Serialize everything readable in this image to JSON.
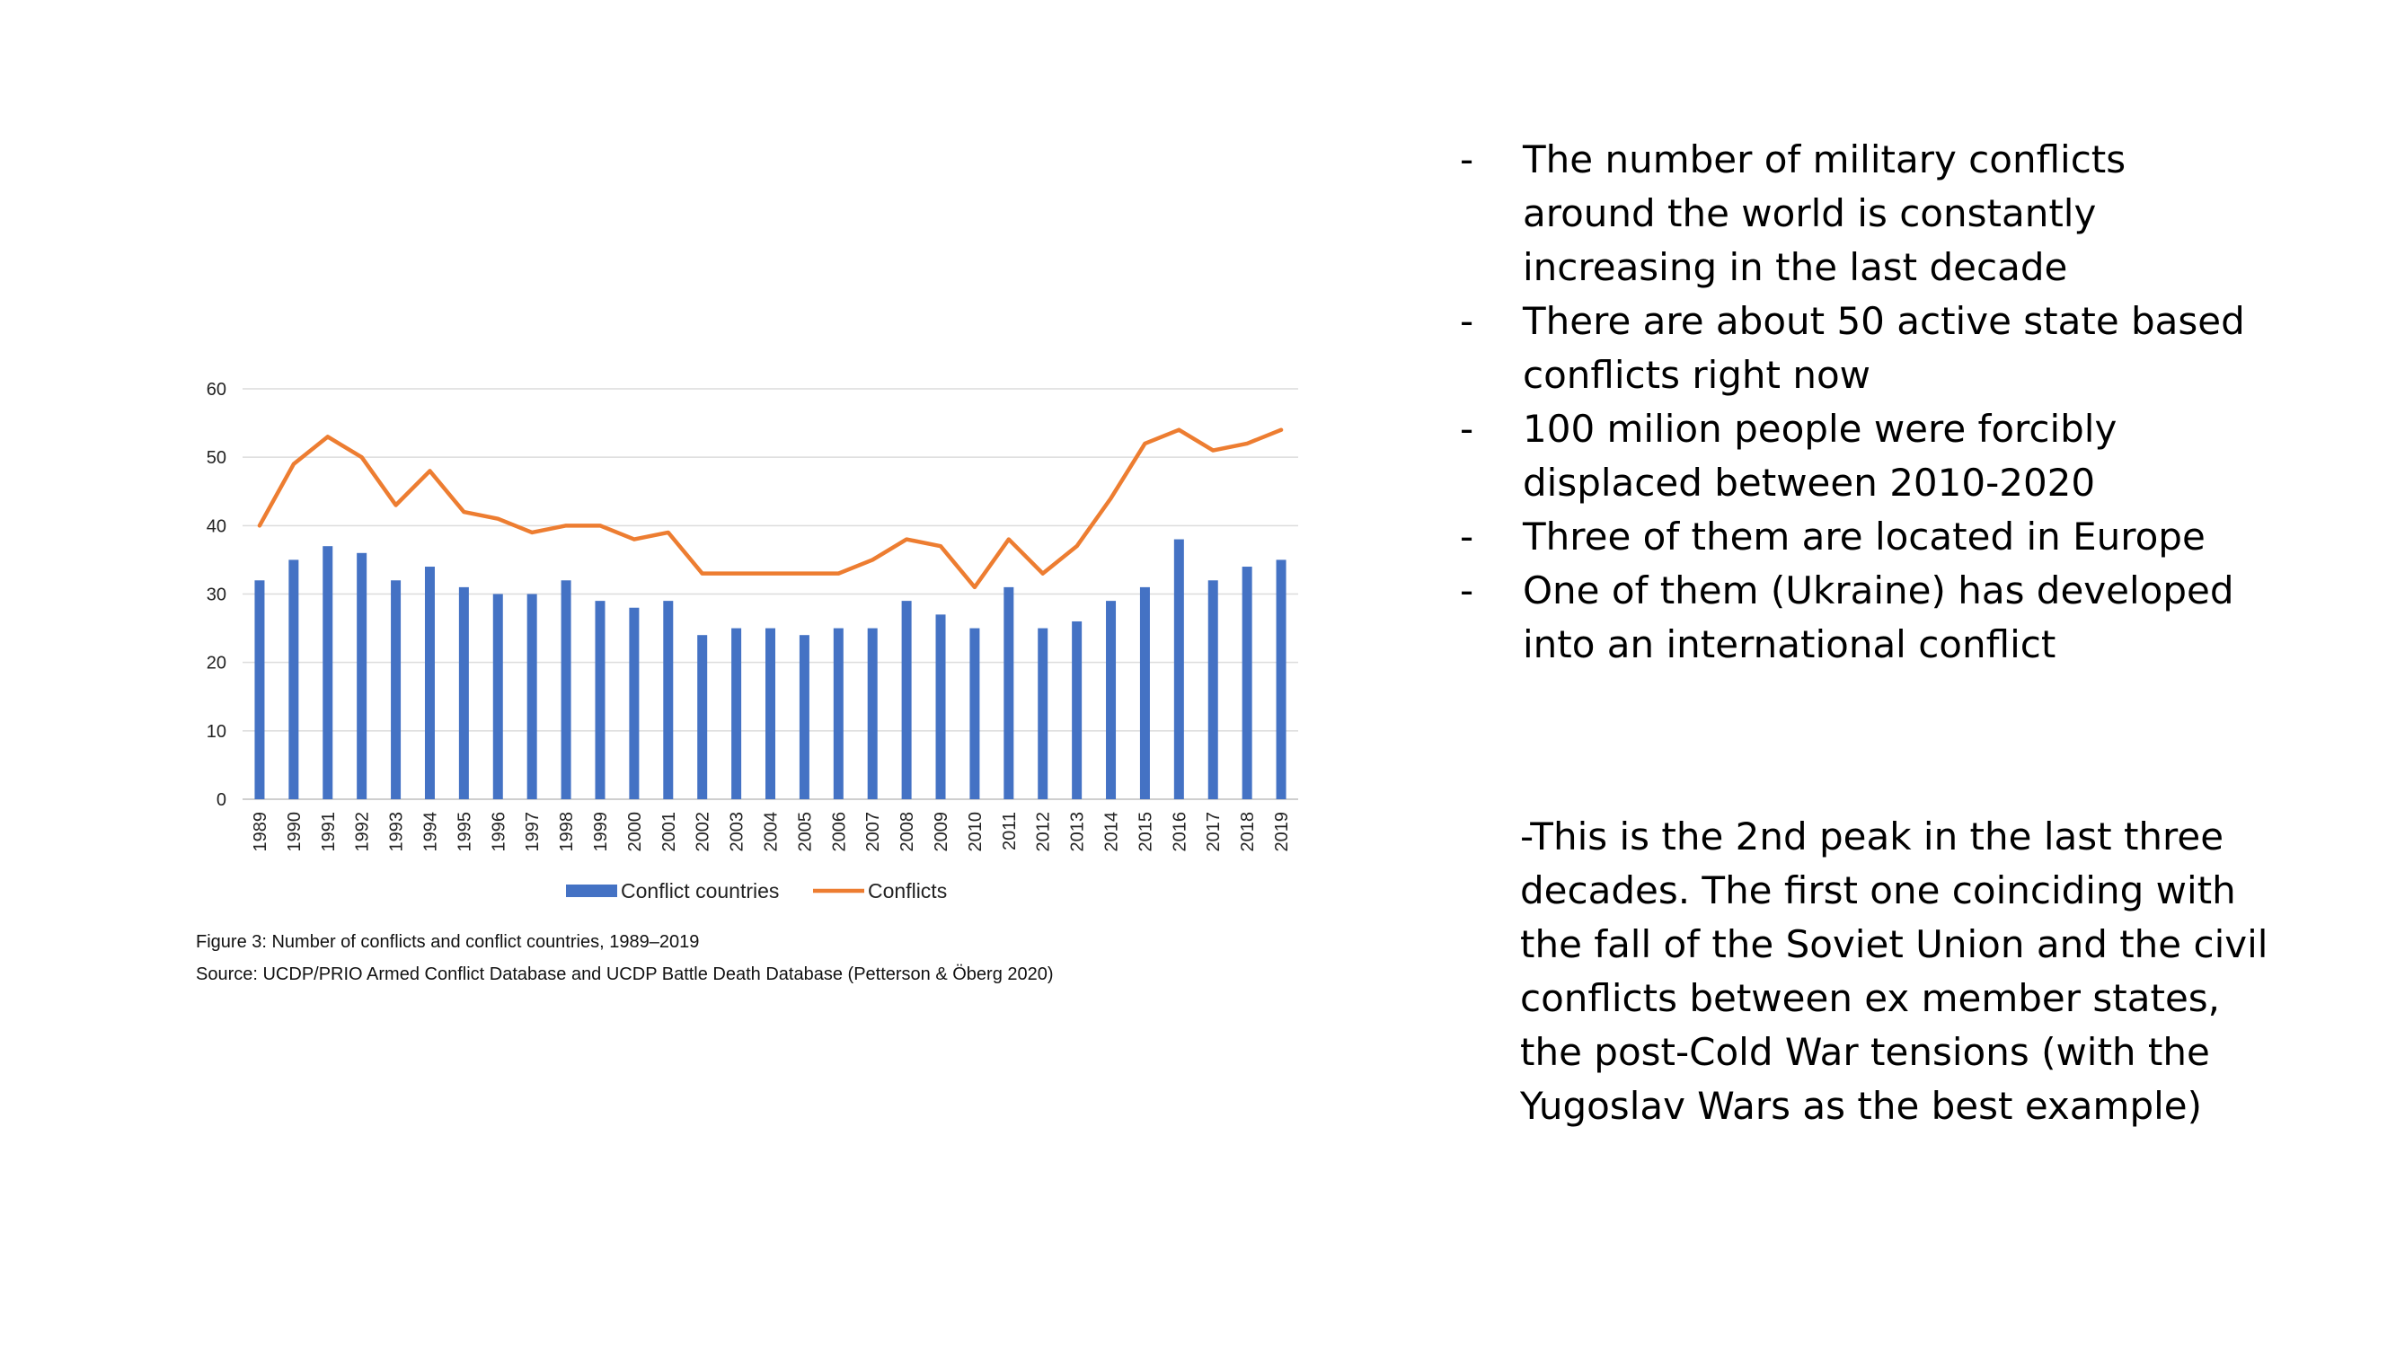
{
  "chart_data": {
    "type": "bar",
    "categories": [
      "1989",
      "1990",
      "1991",
      "1992",
      "1993",
      "1994",
      "1995",
      "1996",
      "1997",
      "1998",
      "1999",
      "2000",
      "2001",
      "2002",
      "2003",
      "2004",
      "2005",
      "2006",
      "2007",
      "2008",
      "2009",
      "2010",
      "2011",
      "2012",
      "2013",
      "2014",
      "2015",
      "2016",
      "2017",
      "2018",
      "2019"
    ],
    "series": [
      {
        "name": "Conflict countries",
        "type": "bar",
        "color": "#4472c4",
        "values": [
          32,
          35,
          37,
          36,
          32,
          34,
          31,
          30,
          30,
          32,
          29,
          28,
          29,
          24,
          25,
          25,
          24,
          25,
          25,
          29,
          27,
          25,
          31,
          25,
          26,
          29,
          31,
          38,
          32,
          34,
          35
        ]
      },
      {
        "name": "Conflicts",
        "type": "line",
        "color": "#ed7d31",
        "values": [
          40,
          49,
          53,
          50,
          43,
          48,
          42,
          41,
          39,
          40,
          40,
          38,
          39,
          33,
          33,
          33,
          33,
          33,
          35,
          38,
          37,
          31,
          38,
          33,
          37,
          44,
          52,
          54,
          51,
          52,
          54
        ]
      }
    ],
    "ylim": [
      0,
      60
    ],
    "yticks": [
      0,
      10,
      20,
      30,
      40,
      50,
      60
    ],
    "grid": true,
    "legend": "bottom"
  },
  "caption": {
    "figure": "Figure 3: Number of conflicts and conflict countries, 1989–2019",
    "source": "Source: UCDP/PRIO Armed Conflict Database and UCDP Battle Death Database (Petterson & Öberg 2020)"
  },
  "bullets": [
    "The number of military conflicts around the world is constantly increasing in the last decade",
    "There are about 50 active state based conflicts right now",
    "100 milion people were forcibly displaced between 2010-2020",
    "Three of them are located in Europe",
    "One of them (Ukraine) has developed into an international conflict"
  ],
  "bullet_marker": "-",
  "note": "-This is the 2nd peak in the last three decades. The first one coinciding with the fall of the Soviet Union and the civil conflicts between ex member states, the post-Cold War tensions (with the Yugoslav Wars as the best example)"
}
